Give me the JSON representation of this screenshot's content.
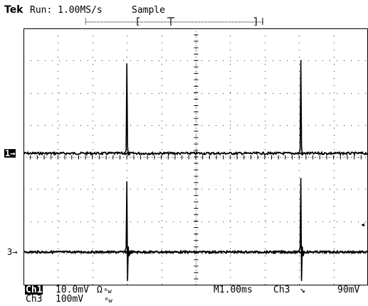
{
  "header": {
    "brand": "Tek",
    "status": "Run: 1.00MS/s",
    "mode": "Sample"
  },
  "markers": {
    "ch1": "1",
    "ch3": "3",
    "arrow": "→",
    "trigger_level": "◂"
  },
  "readout": {
    "ch1_label": "Ch1",
    "ch1_scale": "10.0mV",
    "ch1_coupling_symbol": "Ω",
    "ch1_bw_symbol": "ᴮw",
    "ch3_label": "Ch3",
    "ch3_scale": "100mV",
    "ch3_bw_symbol": "ᴮw",
    "timebase": "M1.00ms",
    "trigger_source": "Ch3",
    "trigger_slope_symbol": "↘",
    "trigger_level": "90mV"
  },
  "colors": {
    "background": "#ffffff",
    "trace": "#000000",
    "graticule": "#000000"
  },
  "icons": {
    "trigger_position": "T-marker",
    "record_bracket": "bracket"
  },
  "chart_data": {
    "type": "line",
    "divisions": {
      "x": 10,
      "y": 8
    },
    "series": [
      {
        "name": "Ch1",
        "baseline_div": 0.0,
        "spikes": [
          {
            "time_div": -2.0,
            "peak_div": 2.8
          },
          {
            "time_div": 3.05,
            "peak_div": 2.9
          }
        ]
      },
      {
        "name": "Ch3",
        "baseline_div": 0.0,
        "spikes": [
          {
            "time_div": -2.0,
            "peak_div": 2.2,
            "trough_div": -0.9
          },
          {
            "time_div": 3.05,
            "peak_div": 2.3,
            "trough_div": -0.9
          }
        ]
      }
    ]
  }
}
